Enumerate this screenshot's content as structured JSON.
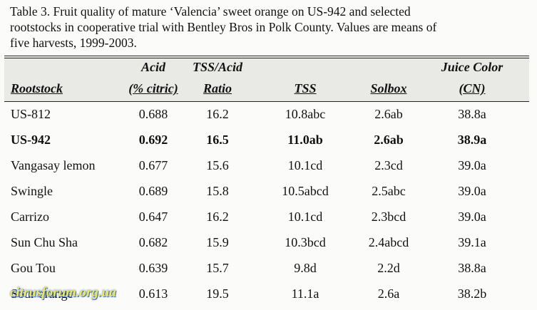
{
  "caption": [
    "Table 3.  Fruit quality of mature ‘Valencia’ sweet orange on US-942 and selected",
    "rootstocks in cooperative trial with Bentley Bros in Polk County. Values are means of",
    "five harvests, 1999-2003."
  ],
  "table": {
    "header": [
      [
        "Rootstock"
      ],
      [
        "Acid",
        "(% citric)"
      ],
      [
        "TSS/Acid",
        "Ratio"
      ],
      [
        "TSS"
      ],
      [
        "Solbox"
      ],
      [
        "Juice Color",
        "(CN)"
      ]
    ],
    "rows": [
      [
        "US-812",
        "0.688",
        "16.2",
        "10.8abc",
        "2.6ab",
        "38.8a"
      ],
      [
        "US-942",
        "0.692",
        "16.5",
        "11.0ab",
        "2.6ab",
        "38.9a"
      ],
      [
        "Vangasay lemon",
        "0.677",
        "15.6",
        "10.1cd",
        "2.3cd",
        "39.0a"
      ],
      [
        "Swingle",
        "0.689",
        "15.8",
        "10.5abcd",
        "2.5abc",
        "39.0a"
      ],
      [
        "Carrizo",
        "0.647",
        "16.2",
        "10.1cd",
        "2.3bcd",
        "39.0a"
      ],
      [
        "Sun Chu Sha",
        "0.682",
        "15.9",
        "10.3bcd",
        "2.4abcd",
        "39.1a"
      ],
      [
        "Gou Tou",
        "0.639",
        "15.7",
        "9.8d",
        "2.2d",
        "38.8a"
      ],
      [
        "Sour orange",
        "0.613",
        "19.5",
        "11.1a",
        "2.6a",
        "38.2b"
      ]
    ]
  },
  "watermark": "citrusforum.org.ua"
}
